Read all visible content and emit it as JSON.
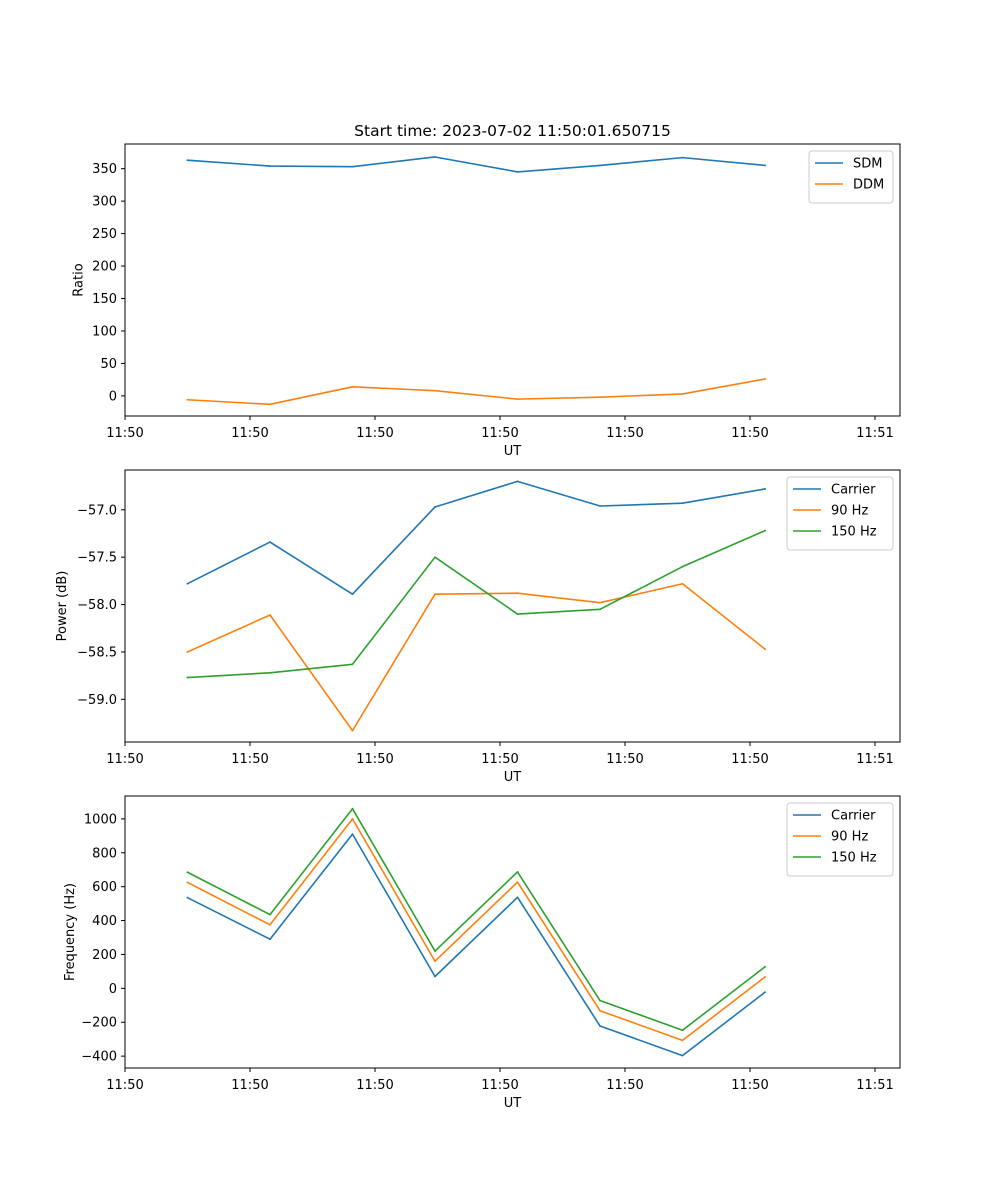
{
  "colors": {
    "blue": "#1f77b4",
    "orange": "#ff7f0e",
    "green": "#2ca02c"
  },
  "chart_data": [
    {
      "type": "line",
      "title": "Start time: 2023-07-02 11:50:01.650715",
      "xlabel": "UT",
      "ylabel": "Ratio",
      "legend_position": "top-right",
      "xlim": [
        0,
        9.3
      ],
      "ylim": [
        -31,
        388
      ],
      "xticks": [
        {
          "value": 0,
          "label": "11:50"
        },
        {
          "value": 1.5,
          "label": "11:50"
        },
        {
          "value": 3,
          "label": "11:50"
        },
        {
          "value": 4.5,
          "label": "11:50"
        },
        {
          "value": 6,
          "label": "11:50"
        },
        {
          "value": 7.5,
          "label": "11:50"
        },
        {
          "value": 9,
          "label": "11:51"
        }
      ],
      "yticks": [
        {
          "value": 0,
          "label": "0"
        },
        {
          "value": 50,
          "label": "50"
        },
        {
          "value": 100,
          "label": "100"
        },
        {
          "value": 150,
          "label": "150"
        },
        {
          "value": 200,
          "label": "200"
        },
        {
          "value": 250,
          "label": "250"
        },
        {
          "value": 300,
          "label": "300"
        },
        {
          "value": 350,
          "label": "350"
        }
      ],
      "x": [
        0.75,
        1.74,
        2.73,
        3.72,
        4.71,
        5.7,
        6.69,
        7.68
      ],
      "series": [
        {
          "name": "SDM",
          "color": "blue",
          "values": [
            363,
            354,
            353,
            368,
            345,
            355,
            367,
            355
          ]
        },
        {
          "name": "DDM",
          "color": "orange",
          "values": [
            -6,
            -13,
            14,
            8,
            -5,
            -2,
            3,
            26
          ]
        }
      ]
    },
    {
      "type": "line",
      "title": "",
      "xlabel": "UT",
      "ylabel": "Power (dB)",
      "legend_position": "top-right",
      "xlim": [
        0,
        9.3
      ],
      "ylim": [
        -59.45,
        -56.58
      ],
      "xticks": [
        {
          "value": 0,
          "label": "11:50"
        },
        {
          "value": 1.5,
          "label": "11:50"
        },
        {
          "value": 3,
          "label": "11:50"
        },
        {
          "value": 4.5,
          "label": "11:50"
        },
        {
          "value": 6,
          "label": "11:50"
        },
        {
          "value": 7.5,
          "label": "11:50"
        },
        {
          "value": 9,
          "label": "11:51"
        }
      ],
      "yticks": [
        {
          "value": -59.0,
          "label": "−59.0"
        },
        {
          "value": -58.5,
          "label": "−58.5"
        },
        {
          "value": -58.0,
          "label": "−58.0"
        },
        {
          "value": -57.5,
          "label": "−57.5"
        },
        {
          "value": -57.0,
          "label": "−57.0"
        }
      ],
      "x": [
        0.75,
        1.74,
        2.73,
        3.72,
        4.71,
        5.7,
        6.69,
        7.68
      ],
      "series": [
        {
          "name": "Carrier",
          "color": "blue",
          "values": [
            -57.78,
            -57.34,
            -57.89,
            -56.97,
            -56.7,
            -56.96,
            -56.93,
            -56.78
          ]
        },
        {
          "name": "90 Hz",
          "color": "orange",
          "values": [
            -58.5,
            -58.11,
            -59.33,
            -57.89,
            -57.88,
            -57.98,
            -57.78,
            -58.47
          ]
        },
        {
          "name": "150 Hz",
          "color": "green",
          "values": [
            -58.77,
            -58.72,
            -58.63,
            -57.5,
            -58.1,
            -58.05,
            -57.6,
            -57.22
          ]
        }
      ]
    },
    {
      "type": "line",
      "title": "",
      "xlabel": "UT",
      "ylabel": "Frequency (Hz)",
      "legend_position": "top-right",
      "xlim": [
        0,
        9.3
      ],
      "ylim": [
        -470,
        1135
      ],
      "xticks": [
        {
          "value": 0,
          "label": "11:50"
        },
        {
          "value": 1.5,
          "label": "11:50"
        },
        {
          "value": 3,
          "label": "11:50"
        },
        {
          "value": 4.5,
          "label": "11:50"
        },
        {
          "value": 6,
          "label": "11:50"
        },
        {
          "value": 7.5,
          "label": "11:50"
        },
        {
          "value": 9,
          "label": "11:51"
        }
      ],
      "yticks": [
        {
          "value": -400,
          "label": "−400"
        },
        {
          "value": -200,
          "label": "−200"
        },
        {
          "value": 0,
          "label": "0"
        },
        {
          "value": 200,
          "label": "200"
        },
        {
          "value": 400,
          "label": "400"
        },
        {
          "value": 600,
          "label": "600"
        },
        {
          "value": 800,
          "label": "800"
        },
        {
          "value": 1000,
          "label": "1000"
        }
      ],
      "x": [
        0.75,
        1.74,
        2.73,
        3.72,
        4.71,
        5.7,
        6.69,
        7.68
      ],
      "series": [
        {
          "name": "Carrier",
          "color": "blue",
          "values": [
            535,
            290,
            910,
            70,
            537,
            -222,
            -397,
            -23
          ]
        },
        {
          "name": "90 Hz",
          "color": "orange",
          "values": [
            625,
            375,
            1000,
            160,
            627,
            -132,
            -307,
            67
          ]
        },
        {
          "name": "150 Hz",
          "color": "green",
          "values": [
            685,
            435,
            1060,
            220,
            687,
            -72,
            -247,
            127
          ]
        }
      ]
    }
  ]
}
